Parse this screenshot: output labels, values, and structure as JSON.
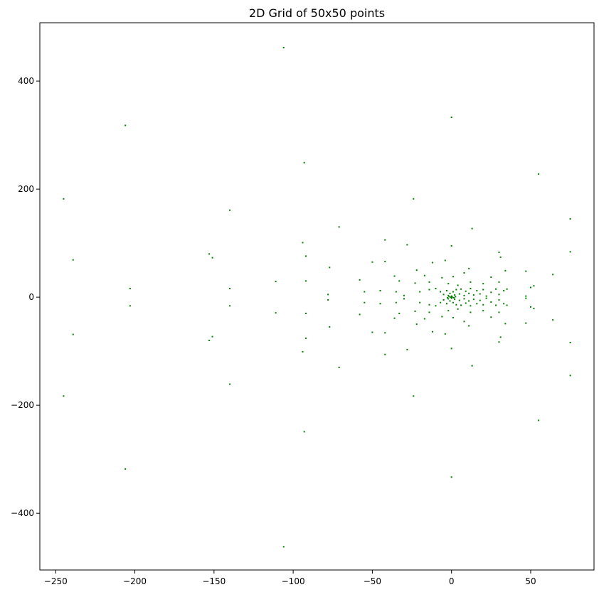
{
  "chart_data": {
    "type": "scatter",
    "title": "2D Grid of 50x50 points",
    "xlabel": "",
    "ylabel": "",
    "xlim": [
      -260,
      90
    ],
    "ylim": [
      -505,
      508
    ],
    "xticks": [
      -250,
      -200,
      -150,
      -100,
      -50,
      0,
      50
    ],
    "yticks": [
      -400,
      -200,
      0,
      200,
      400
    ],
    "xtick_labels": [
      "−250",
      "−200",
      "−150",
      "−100",
      "−50",
      "0",
      "50"
    ],
    "ytick_labels": [
      "−400",
      "−200",
      "0",
      "200",
      "400"
    ],
    "grid": false,
    "legend": "none",
    "point_color": "#008000",
    "series": [
      {
        "points": [
          [
            -106,
            462
          ],
          [
            -106,
            -462
          ],
          [
            -206,
            318
          ],
          [
            -206,
            -318
          ],
          [
            0,
            333
          ],
          [
            0,
            -333
          ],
          [
            -93,
            249
          ],
          [
            -93,
            -249
          ],
          [
            55,
            228
          ],
          [
            55,
            -228
          ],
          [
            -245,
            182
          ],
          [
            -245,
            -183
          ],
          [
            -24,
            182
          ],
          [
            -24,
            -183
          ],
          [
            -140,
            161
          ],
          [
            -140,
            -161
          ],
          [
            75,
            145
          ],
          [
            75,
            -145
          ],
          [
            -71,
            130
          ],
          [
            -71,
            -130
          ],
          [
            13,
            127
          ],
          [
            13,
            -127
          ],
          [
            -42,
            106
          ],
          [
            -42,
            -106
          ],
          [
            -94,
            101
          ],
          [
            -94,
            -101
          ],
          [
            -28,
            97
          ],
          [
            -28,
            -97
          ],
          [
            0,
            95
          ],
          [
            0,
            -95
          ],
          [
            -239,
            69
          ],
          [
            -239,
            -69
          ],
          [
            -153,
            80
          ],
          [
            -153,
            -80
          ],
          [
            -151,
            73
          ],
          [
            -151,
            -73
          ],
          [
            -92,
            76
          ],
          [
            -92,
            -76
          ],
          [
            75,
            84
          ],
          [
            75,
            -84
          ],
          [
            30,
            83
          ],
          [
            30,
            -83
          ],
          [
            31,
            74
          ],
          [
            31,
            -74
          ],
          [
            -42,
            66
          ],
          [
            -42,
            -66
          ],
          [
            -50,
            65
          ],
          [
            -50,
            -65
          ],
          [
            -12,
            64
          ],
          [
            -12,
            -64
          ],
          [
            -4,
            68
          ],
          [
            -4,
            -68
          ],
          [
            -77,
            55
          ],
          [
            -77,
            -55
          ],
          [
            11,
            53
          ],
          [
            11,
            -53
          ],
          [
            -22,
            50
          ],
          [
            -22,
            -50
          ],
          [
            34,
            49
          ],
          [
            34,
            -49
          ],
          [
            47,
            48
          ],
          [
            47,
            -48
          ],
          [
            64,
            42
          ],
          [
            64,
            -42
          ],
          [
            -36,
            39
          ],
          [
            -36,
            -39
          ],
          [
            -17,
            40
          ],
          [
            -17,
            -40
          ],
          [
            -6,
            36
          ],
          [
            -6,
            -36
          ],
          [
            1,
            38
          ],
          [
            1,
            -38
          ],
          [
            8,
            45
          ],
          [
            8,
            -45
          ],
          [
            25,
            37
          ],
          [
            25,
            -37
          ],
          [
            -58,
            32
          ],
          [
            -58,
            -32
          ],
          [
            -111,
            29
          ],
          [
            -111,
            -29
          ],
          [
            -92,
            30
          ],
          [
            -92,
            -30
          ],
          [
            -33,
            30
          ],
          [
            -33,
            -30
          ],
          [
            -23,
            26
          ],
          [
            -23,
            -26
          ],
          [
            -14,
            28
          ],
          [
            -14,
            -28
          ],
          [
            -2,
            25
          ],
          [
            -2,
            -25
          ],
          [
            4,
            22
          ],
          [
            4,
            -22
          ],
          [
            12,
            28
          ],
          [
            12,
            -28
          ],
          [
            20,
            25
          ],
          [
            20,
            -25
          ],
          [
            30,
            28
          ],
          [
            30,
            -28
          ],
          [
            -78,
            5
          ],
          [
            -78,
            -5
          ],
          [
            -55,
            10
          ],
          [
            -55,
            -10
          ],
          [
            -45,
            12
          ],
          [
            -45,
            -12
          ],
          [
            -35,
            10
          ],
          [
            -35,
            -10
          ],
          [
            -30,
            3
          ],
          [
            -30,
            -3
          ],
          [
            -20,
            10
          ],
          [
            -20,
            -10
          ],
          [
            -14,
            14
          ],
          [
            -14,
            -14
          ],
          [
            -10,
            16
          ],
          [
            -10,
            -16
          ],
          [
            -7,
            10
          ],
          [
            -7,
            -10
          ],
          [
            -5,
            5
          ],
          [
            -5,
            -5
          ],
          [
            -3,
            12
          ],
          [
            -3,
            -12
          ],
          [
            -2,
            3
          ],
          [
            -2,
            -3
          ],
          [
            -1,
            7
          ],
          [
            -1,
            -7
          ],
          [
            0,
            2
          ],
          [
            0,
            -2
          ],
          [
            1,
            10
          ],
          [
            1,
            -10
          ],
          [
            2,
            4
          ],
          [
            2,
            -4
          ],
          [
            3,
            14
          ],
          [
            3,
            -14
          ],
          [
            5,
            6
          ],
          [
            5,
            -6
          ],
          [
            6,
            15
          ],
          [
            6,
            -15
          ],
          [
            8,
            3
          ],
          [
            8,
            -3
          ],
          [
            9,
            11
          ],
          [
            9,
            -11
          ],
          [
            11,
            7
          ],
          [
            11,
            -7
          ],
          [
            12,
            16
          ],
          [
            12,
            -16
          ],
          [
            14,
            4
          ],
          [
            14,
            -4
          ],
          [
            16,
            12
          ],
          [
            16,
            -12
          ],
          [
            18,
            6
          ],
          [
            18,
            -6
          ],
          [
            20,
            14
          ],
          [
            20,
            -14
          ],
          [
            22,
            2
          ],
          [
            22,
            -2
          ],
          [
            25,
            9
          ],
          [
            25,
            -9
          ],
          [
            28,
            15
          ],
          [
            28,
            -15
          ],
          [
            30,
            5
          ],
          [
            30,
            -5
          ],
          [
            33,
            12
          ],
          [
            33,
            -12
          ],
          [
            35,
            15
          ],
          [
            35,
            -15
          ],
          [
            47,
            2
          ],
          [
            47,
            -2
          ],
          [
            50,
            18
          ],
          [
            50,
            -18
          ],
          [
            52,
            21
          ],
          [
            52,
            -21
          ],
          [
            -203,
            16
          ],
          [
            -203,
            -16
          ],
          [
            -140,
            16
          ],
          [
            -140,
            -16
          ],
          [
            -0.5,
            0
          ],
          [
            0.5,
            0
          ],
          [
            -1.5,
            1
          ],
          [
            1.5,
            -1
          ],
          [
            2.5,
            1
          ],
          [
            -2.5,
            -1
          ],
          [
            0,
            0.5
          ],
          [
            0,
            -0.5
          ]
        ]
      }
    ]
  }
}
